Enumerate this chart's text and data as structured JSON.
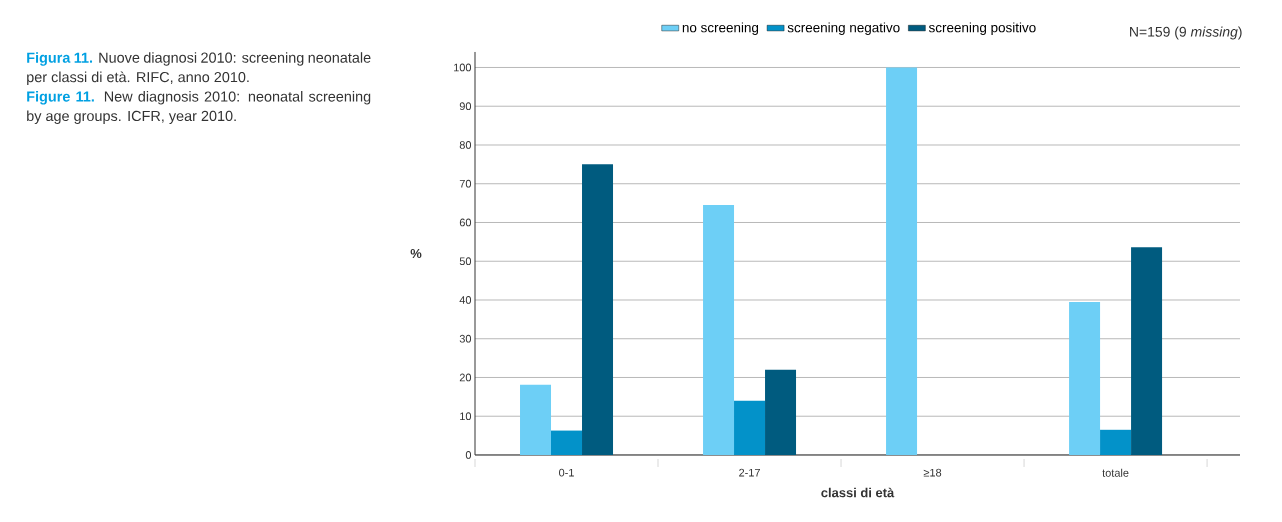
{
  "chart_data": {
    "type": "bar",
    "title": "**Figura 11.** Nuove diagnosi 2010: screening neonatale per classi di età. RIFC, anno 2010.",
    "subtitle": "**Figure 11.** New diagnosis 2010: neonatal screening by age groups. ICFR, year 2010.",
    "xlabel": "classi di età",
    "ylabel": "%",
    "categories": [
      "0-1",
      "2-17",
      "≥18",
      "totale"
    ],
    "series": [
      {
        "name": "no screening",
        "color": "#6dcff6",
        "values": [
          18.1,
          64.5,
          100,
          39.5
        ]
      },
      {
        "name": "screening negativo",
        "color": "#0392c9",
        "values": [
          6.3,
          14.0,
          0,
          6.5
        ]
      },
      {
        "name": "screening positivo",
        "color": "#005b7f",
        "values": [
          75.0,
          22.0,
          0,
          53.6
        ]
      }
    ],
    "ylim": [
      0,
      104
    ],
    "yticks": [
      0,
      10,
      20,
      30,
      40,
      50,
      60,
      70,
      80,
      90,
      100
    ],
    "grid": "y",
    "legend": "top",
    "annotations": [
      "N=159 (9 *missing*)"
    ]
  }
}
